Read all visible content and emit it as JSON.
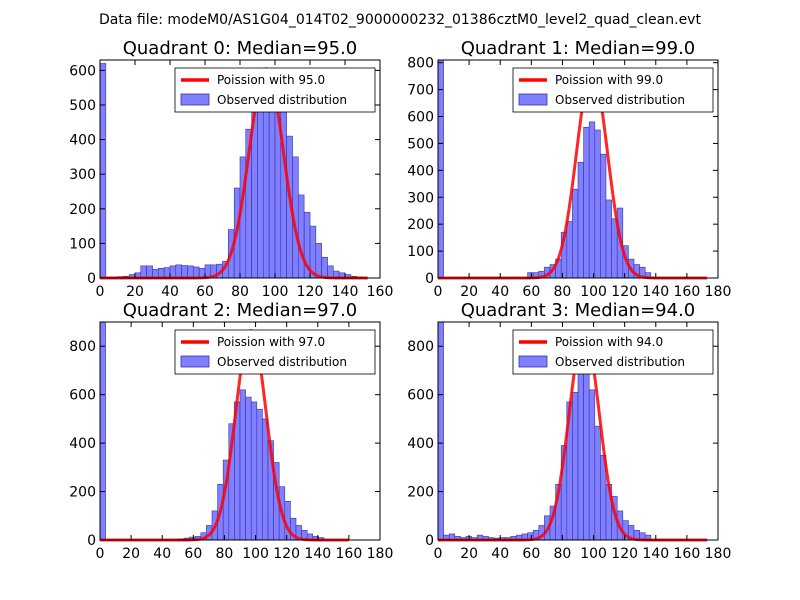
{
  "suptitle": "Data file: modeM0/AS1G04_014T02_9000000232_01386cztM0_level2_quad_clean.evt",
  "colors": {
    "bar_fill": "#8080ff",
    "bar_edge": "#3333aa",
    "curve": "#ff0000",
    "axis": "#000000"
  },
  "chart_data": [
    {
      "type": "bar",
      "title": "Quadrant 0: Median=95.0",
      "median": 95.0,
      "xlim": [
        0,
        160
      ],
      "ylim": [
        0,
        630
      ],
      "xticks": [
        0,
        20,
        40,
        60,
        80,
        100,
        120,
        140,
        160
      ],
      "yticks": [
        0,
        100,
        200,
        300,
        400,
        500,
        600
      ],
      "bin_width": 3.33,
      "bins": [
        [
          0,
          620
        ],
        [
          3.3,
          2
        ],
        [
          6.7,
          3
        ],
        [
          10,
          4
        ],
        [
          13.3,
          5
        ],
        [
          16.7,
          10
        ],
        [
          20,
          15
        ],
        [
          23.3,
          35
        ],
        [
          26.7,
          35
        ],
        [
          30,
          25
        ],
        [
          33.3,
          28
        ],
        [
          36.7,
          30
        ],
        [
          40,
          35
        ],
        [
          43.3,
          38
        ],
        [
          46.7,
          36
        ],
        [
          50,
          35
        ],
        [
          53.3,
          32
        ],
        [
          56.7,
          28
        ],
        [
          60,
          38
        ],
        [
          63.3,
          38
        ],
        [
          66.7,
          40
        ],
        [
          70,
          48
        ],
        [
          73.3,
          140
        ],
        [
          76.7,
          260
        ],
        [
          80,
          350
        ],
        [
          83.3,
          430
        ],
        [
          86.7,
          480
        ],
        [
          90,
          555
        ],
        [
          93.3,
          580
        ],
        [
          96.7,
          570
        ],
        [
          100,
          560
        ],
        [
          103.3,
          480
        ],
        [
          106.7,
          410
        ],
        [
          110,
          350
        ],
        [
          113.3,
          240
        ],
        [
          116.7,
          190
        ],
        [
          120,
          150
        ],
        [
          123.3,
          100
        ],
        [
          126.7,
          60
        ],
        [
          130,
          35
        ],
        [
          133.3,
          20
        ],
        [
          136.7,
          15
        ],
        [
          140,
          10
        ],
        [
          143.3,
          5
        ],
        [
          146.7,
          3
        ]
      ],
      "curve": {
        "label": "Poission with 95.0",
        "mean": 95.0,
        "peak": 605,
        "x_range": [
          0,
          153
        ]
      },
      "legend": {
        "line_label": "Poission with 95.0",
        "bar_label": "Observed distribution",
        "location": "top-right"
      }
    },
    {
      "type": "bar",
      "title": "Quadrant 1: Median=99.0",
      "median": 99.0,
      "xlim": [
        0,
        180
      ],
      "ylim": [
        0,
        810
      ],
      "xticks": [
        0,
        20,
        40,
        60,
        80,
        100,
        120,
        140,
        160,
        180
      ],
      "yticks": [
        0,
        100,
        200,
        300,
        400,
        500,
        600,
        700,
        800
      ],
      "bin_width": 3.6,
      "bins": [
        [
          0,
          810
        ],
        [
          57.6,
          20
        ],
        [
          61.2,
          20
        ],
        [
          64.8,
          25
        ],
        [
          68.4,
          40
        ],
        [
          72,
          50
        ],
        [
          75.6,
          70
        ],
        [
          79.2,
          170
        ],
        [
          82.8,
          210
        ],
        [
          86.4,
          330
        ],
        [
          90,
          430
        ],
        [
          93.6,
          560
        ],
        [
          97.2,
          580
        ],
        [
          100.8,
          550
        ],
        [
          104.4,
          460
        ],
        [
          108,
          290
        ],
        [
          111.6,
          220
        ],
        [
          115.2,
          260
        ],
        [
          118.8,
          120
        ],
        [
          122.4,
          70
        ],
        [
          126,
          50
        ],
        [
          129.6,
          40
        ],
        [
          133.2,
          20
        ]
      ],
      "curve": {
        "label": "Poission with 99.0",
        "mean": 99.0,
        "peak": 770,
        "x_range": [
          0,
          173
        ]
      },
      "legend": {
        "line_label": "Poission with 99.0",
        "bar_label": "Observed distribution",
        "location": "top-right"
      }
    },
    {
      "type": "bar",
      "title": "Quadrant 2: Median=97.0",
      "median": 97.0,
      "xlim": [
        0,
        180
      ],
      "ylim": [
        0,
        900
      ],
      "xticks": [
        0,
        20,
        40,
        60,
        80,
        100,
        120,
        140,
        160,
        180
      ],
      "yticks": [
        0,
        200,
        400,
        600,
        800
      ],
      "bin_width": 3.6,
      "bins": [
        [
          0,
          900
        ],
        [
          50.4,
          5
        ],
        [
          54,
          8
        ],
        [
          57.6,
          12
        ],
        [
          61.2,
          15
        ],
        [
          64.8,
          30
        ],
        [
          68.4,
          60
        ],
        [
          72,
          120
        ],
        [
          75.6,
          230
        ],
        [
          79.2,
          330
        ],
        [
          82.8,
          480
        ],
        [
          86.4,
          570
        ],
        [
          90,
          620
        ],
        [
          93.6,
          590
        ],
        [
          97.2,
          570
        ],
        [
          100.8,
          540
        ],
        [
          104.4,
          500
        ],
        [
          108,
          410
        ],
        [
          111.6,
          320
        ],
        [
          115.2,
          220
        ],
        [
          118.8,
          160
        ],
        [
          122.4,
          90
        ],
        [
          126,
          60
        ],
        [
          129.6,
          40
        ],
        [
          133.2,
          25
        ],
        [
          136.8,
          15
        ],
        [
          140.4,
          10
        ]
      ],
      "curve": {
        "label": "Poission with 97.0",
        "mean": 97.0,
        "peak": 865,
        "x_range": [
          0,
          160
        ]
      },
      "legend": {
        "line_label": "Poission with 97.0",
        "bar_label": "Observed distribution",
        "location": "top-right"
      }
    },
    {
      "type": "bar",
      "title": "Quadrant 3: Median=94.0",
      "median": 94.0,
      "xlim": [
        0,
        180
      ],
      "ylim": [
        0,
        900
      ],
      "xticks": [
        0,
        20,
        40,
        60,
        80,
        100,
        120,
        140,
        160,
        180
      ],
      "yticks": [
        0,
        200,
        400,
        600,
        800
      ],
      "bin_width": 3.6,
      "bins": [
        [
          0,
          900
        ],
        [
          3.6,
          20
        ],
        [
          7.2,
          25
        ],
        [
          10.8,
          15
        ],
        [
          14.4,
          10
        ],
        [
          18,
          15
        ],
        [
          21.6,
          10
        ],
        [
          25.2,
          20
        ],
        [
          28.8,
          15
        ],
        [
          32.4,
          10
        ],
        [
          36,
          8
        ],
        [
          39.6,
          10
        ],
        [
          43.2,
          10
        ],
        [
          46.8,
          15
        ],
        [
          50.4,
          20
        ],
        [
          54,
          25
        ],
        [
          57.6,
          30
        ],
        [
          61.2,
          40
        ],
        [
          64.8,
          60
        ],
        [
          68.4,
          100
        ],
        [
          72,
          140
        ],
        [
          75.6,
          230
        ],
        [
          79.2,
          390
        ],
        [
          82.8,
          570
        ],
        [
          86.4,
          610
        ],
        [
          90,
          720
        ],
        [
          93.6,
          700
        ],
        [
          97.2,
          620
        ],
        [
          100.8,
          470
        ],
        [
          104.4,
          350
        ],
        [
          108,
          230
        ],
        [
          111.6,
          180
        ],
        [
          115.2,
          120
        ],
        [
          118.8,
          80
        ],
        [
          122.4,
          60
        ],
        [
          126,
          40
        ],
        [
          129.6,
          30
        ],
        [
          133.2,
          20
        ]
      ],
      "curve": {
        "label": "Poission with 94.0",
        "mean": 94.0,
        "peak": 860,
        "x_range": [
          0,
          173
        ]
      },
      "legend": {
        "line_label": "Poission with 94.0",
        "bar_label": "Observed distribution",
        "location": "top-right"
      }
    }
  ]
}
